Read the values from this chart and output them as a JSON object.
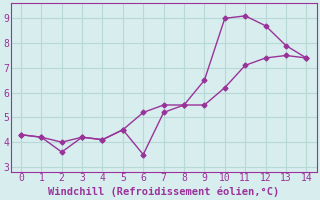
{
  "line1_x": [
    0,
    1,
    2,
    3,
    4,
    5,
    6,
    7,
    8,
    9,
    10,
    11,
    12,
    13,
    14
  ],
  "line1_y": [
    4.3,
    4.2,
    3.6,
    4.2,
    4.1,
    4.5,
    3.5,
    5.2,
    5.5,
    6.5,
    9.0,
    9.1,
    8.7,
    7.9,
    7.4
  ],
  "line2_x": [
    0,
    1,
    2,
    3,
    4,
    5,
    6,
    7,
    8,
    9,
    10,
    11,
    12,
    13,
    14
  ],
  "line2_y": [
    4.3,
    4.2,
    4.0,
    4.2,
    4.1,
    4.5,
    5.2,
    5.5,
    5.5,
    5.5,
    6.2,
    7.1,
    7.4,
    7.5,
    7.4
  ],
  "color": "#993399",
  "bg_color": "#d8eeee",
  "grid_color": "#b8d8d8",
  "xlabel": "Windchill (Refroidissement éolien,°C)",
  "xlim": [
    -0.5,
    14.5
  ],
  "ylim": [
    2.8,
    9.6
  ],
  "xticks": [
    0,
    1,
    2,
    3,
    4,
    5,
    6,
    7,
    8,
    9,
    10,
    11,
    12,
    13,
    14
  ],
  "yticks": [
    3,
    4,
    5,
    6,
    7,
    8,
    9
  ],
  "xlabel_fontsize": 7.5,
  "tick_fontsize": 7,
  "marker": "D",
  "marker_size": 2.5,
  "line_width": 1.0
}
